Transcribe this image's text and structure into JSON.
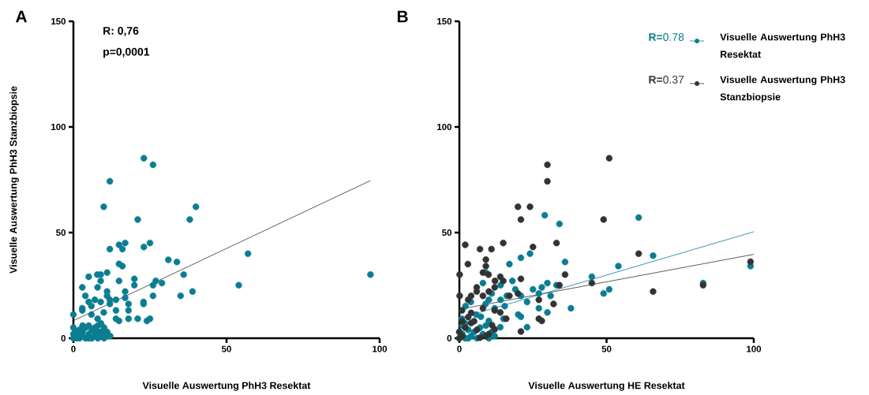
{
  "chart_data": [
    {
      "type": "scatter",
      "title": "A",
      "xlabel": "Visuelle Auswertung PhH3 Resektat",
      "ylabel": "Visuelle Auswertung PhH3 Stanzbiopsie",
      "xlim": [
        0,
        100
      ],
      "ylim": [
        0,
        150
      ],
      "xticks": [
        0,
        50,
        100
      ],
      "yticks": [
        0,
        50,
        100,
        150
      ],
      "annotations": [
        "**R: 0,76**",
        "**p=0,0001**"
      ],
      "series": [
        {
          "marker": "circle",
          "color": "#0b7d93",
          "x": [
            23,
            26,
            11.9,
            9.9,
            40,
            21,
            38,
            57,
            14.9,
            16.9,
            16,
            11.9,
            23,
            25,
            31,
            33.8,
            36,
            97,
            54,
            14.9,
            16,
            5,
            7.8,
            8.9,
            11,
            8.9,
            14.9,
            19.9,
            19.9,
            26.9,
            26,
            28.9,
            2.9,
            7.9,
            11,
            16.9,
            3.9,
            11,
            16.9,
            26,
            35,
            38.9,
            5,
            7,
            8.9,
            11.9,
            11.9,
            13.9,
            18,
            22.9,
            22.9,
            2.9,
            5.9,
            2.9,
            9.9,
            13.9,
            18,
            0,
            5.9,
            13.9,
            14.9,
            18,
            21,
            24,
            25,
            7.9,
            0,
            2,
            3,
            4,
            5,
            6,
            7,
            8,
            9,
            10,
            11,
            10,
            0,
            1,
            2,
            3,
            4,
            5,
            6,
            7,
            8,
            9,
            9,
            10,
            2,
            3,
            1,
            0,
            7,
            8,
            5,
            11,
            12
          ],
          "values": [
            85.2,
            82.1,
            74.3,
            62.2,
            62.2,
            56.2,
            56.2,
            40,
            44.2,
            45.1,
            42.2,
            42.2,
            43.2,
            45.1,
            37.1,
            36.1,
            30.1,
            30.1,
            25.1,
            35.2,
            34.1,
            29.1,
            30.1,
            30.1,
            31.1,
            27.1,
            27.1,
            28.1,
            25.1,
            27.1,
            25.1,
            26.1,
            24.1,
            24.1,
            22.1,
            22.1,
            20.1,
            20.1,
            19.1,
            20.1,
            20.1,
            22.1,
            17.2,
            18.2,
            17.2,
            18.2,
            16.2,
            18.2,
            16.2,
            17.2,
            16.2,
            14.2,
            15.2,
            13.2,
            12.2,
            13.2,
            13.2,
            11.2,
            11.2,
            9.2,
            8.2,
            9.2,
            9.2,
            8.2,
            9.2,
            9.2,
            5,
            1,
            3,
            0,
            2,
            4,
            1,
            0,
            3,
            5,
            1,
            0,
            0,
            0,
            0,
            1,
            5,
            6,
            0,
            3,
            6,
            7,
            1,
            2,
            4,
            6,
            3,
            2,
            5,
            3,
            0,
            3,
            1
          ]
        },
        {
          "type": "line",
          "marker": "none",
          "color": "#333333",
          "x": [
            0,
            97
          ],
          "values": [
            8.3,
            74.6
          ]
        }
      ]
    },
    {
      "type": "scatter",
      "title": "B",
      "xlabel": "Visuelle Auswertung HE Resektat",
      "xlim": [
        0,
        100
      ],
      "ylim": [
        0,
        150
      ],
      "xticks": [
        0,
        50,
        100
      ],
      "yticks": [
        0,
        50,
        100,
        150
      ],
      "legend": "top right",
      "annotations": [
        "**R=**0.78",
        "**R=**0.37"
      ],
      "series": [
        {
          "marker": "circle",
          "name": "Visuelle Auswertung PhH3 Resektat",
          "color": "#0b7d93",
          "x": [
            29,
            34,
            60.9,
            24,
            20.9,
            17,
            35.9,
            65.8,
            54,
            98.9,
            82.8,
            45,
            49,
            50.9,
            9,
            8,
            14,
            18,
            19,
            25,
            28,
            29.9,
            33,
            31,
            27,
            23,
            20.9,
            11,
            10,
            16.1,
            14,
            3.9,
            2.1,
            8.9,
            15.4,
            37.9,
            27,
            29.9,
            20,
            20.9,
            15,
            10,
            13.9,
            23,
            7.3,
            0.8,
            5.7,
            12,
            0,
            1,
            2,
            3,
            1,
            4,
            5,
            6,
            7,
            8,
            10,
            11,
            0,
            2,
            9,
            3,
            12
          ],
          "values": [
            58.2,
            54.1,
            57.1,
            40,
            38.1,
            35.1,
            36.1,
            39.1,
            34.1,
            34.1,
            26.1,
            29.1,
            21.2,
            23.1,
            31.1,
            26.1,
            25.1,
            27.1,
            23.1,
            23.1,
            24.1,
            26.1,
            25.1,
            20.1,
            21.2,
            17.2,
            20.1,
            21.2,
            18.2,
            20.1,
            18.2,
            17.2,
            15.2,
            16.2,
            15.2,
            14.2,
            14.2,
            12.2,
            11.2,
            10.2,
            9.2,
            8.2,
            5.2,
            5.2,
            10.2,
            9.2,
            11.2,
            14.2,
            0,
            2,
            0,
            4,
            6,
            1,
            3,
            0,
            5,
            2,
            0,
            3,
            3,
            7,
            6,
            0,
            1
          ]
        },
        {
          "marker": "circle",
          "name": "Visuelle Auswertung PhH3 Stanzbiopsie",
          "color": "#333333",
          "x": [
            50.9,
            29.9,
            29.9,
            19.9,
            24,
            20.9,
            49,
            2,
            7,
            10.9,
            14.9,
            25,
            33,
            60.9,
            0.1,
            2.9,
            9,
            9,
            8,
            9.9,
            13.9,
            12.1,
            14.9,
            20.9,
            35.9,
            34,
            45,
            98.9,
            82.8,
            65.8,
            5.9,
            5.9,
            0.1,
            4,
            8,
            10,
            12,
            19.9,
            17,
            27,
            32,
            3,
            8,
            0.9,
            12,
            13.9,
            15.9,
            27,
            28,
            20.9,
            7,
            4,
            12,
            11.1,
            1,
            0,
            2,
            1,
            3,
            5,
            6,
            9,
            10,
            0,
            4
          ],
          "values": [
            85.2,
            82.1,
            74.3,
            62.2,
            62.2,
            56.2,
            56.2,
            44.2,
            42.2,
            42.2,
            45.1,
            43.2,
            45.1,
            40,
            30.1,
            35.1,
            37.2,
            34.1,
            31.1,
            30.1,
            29.1,
            27.1,
            27.1,
            28.1,
            30.1,
            25.1,
            26.1,
            36.2,
            25.1,
            22.1,
            24.1,
            22.1,
            20.1,
            20.1,
            20.1,
            22.1,
            24.1,
            21.2,
            20.1,
            18.2,
            16.2,
            18.2,
            14.2,
            13.2,
            13.2,
            12.2,
            9.2,
            9.2,
            8.2,
            3.2,
            0.3,
            7.2,
            4.2,
            6.2,
            8,
            3,
            5,
            1,
            10,
            8,
            4,
            1,
            2,
            0,
            12
          ]
        },
        {
          "type": "line",
          "marker": "none",
          "color": "#0b7d93",
          "x": [
            0,
            100
          ],
          "values": [
            9.4,
            50.4
          ]
        },
        {
          "type": "line",
          "marker": "none",
          "color": "#333333",
          "x": [
            0,
            100
          ],
          "values": [
            13.7,
            39.7
          ]
        }
      ]
    }
  ]
}
